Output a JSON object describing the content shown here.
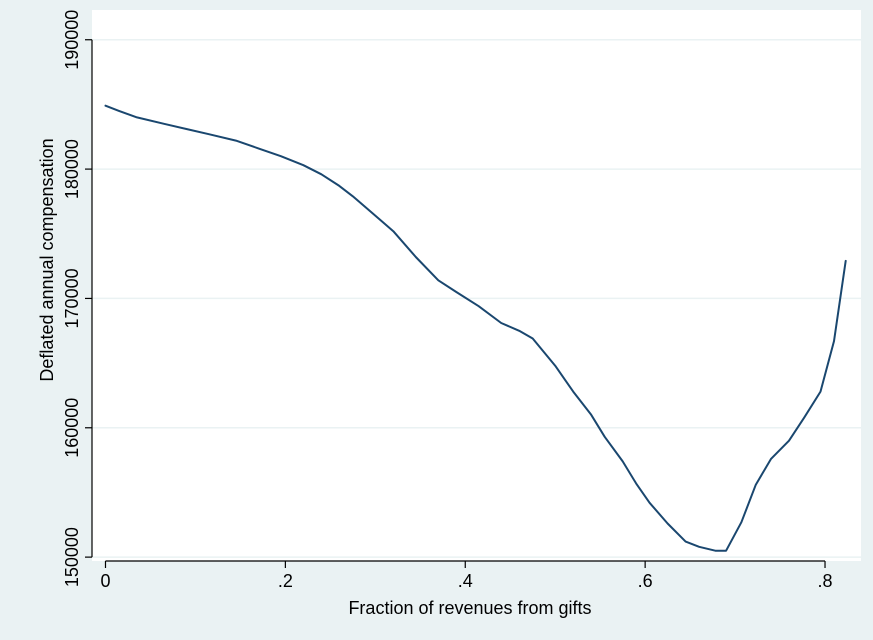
{
  "chart_data": {
    "type": "line",
    "title": "",
    "xlabel": "Fraction of revenues from gifts",
    "ylabel": "Deflated annual compensation",
    "xlim": [
      -0.015,
      0.84
    ],
    "ylim": [
      149700,
      192300
    ],
    "x_ticks": [
      0,
      0.2,
      0.4,
      0.6,
      0.8
    ],
    "x_tick_labels": [
      "0",
      ".2",
      ".4",
      ".6",
      ".8"
    ],
    "y_ticks": [
      150000,
      160000,
      170000,
      180000,
      190000
    ],
    "y_tick_labels": [
      "150000",
      "160000",
      "170000",
      "180000",
      "190000"
    ],
    "grid": true,
    "legend": "none",
    "colors": {
      "outer_background": "#eaf2f3",
      "plot_background": "#ffffff",
      "grid": "#eaf2f3",
      "line": "#1a476f",
      "axis": "#000000"
    },
    "series": [
      {
        "x": [
          0.0,
          0.015,
          0.035,
          0.065,
          0.09,
          0.115,
          0.145,
          0.17,
          0.195,
          0.22,
          0.24,
          0.26,
          0.275,
          0.29,
          0.32,
          0.345,
          0.37,
          0.39,
          0.415,
          0.44,
          0.46,
          0.475,
          0.5,
          0.52,
          0.54,
          0.555,
          0.575,
          0.59,
          0.605,
          0.625,
          0.645,
          0.66,
          0.678,
          0.69,
          0.707,
          0.723,
          0.74,
          0.76,
          0.777,
          0.795,
          0.81,
          0.823
        ],
        "y": [
          184900,
          184500,
          184000,
          183500,
          183100,
          182700,
          182200,
          181600,
          181000,
          180300,
          179600,
          178700,
          177900,
          177000,
          175200,
          173200,
          171400,
          170500,
          169400,
          168100,
          167500,
          166900,
          164800,
          162800,
          161000,
          159300,
          157400,
          155700,
          154200,
          152600,
          151200,
          150800,
          150500,
          150500,
          152700,
          155600,
          157600,
          159000,
          160800,
          162800,
          166700,
          172900
        ]
      }
    ]
  }
}
